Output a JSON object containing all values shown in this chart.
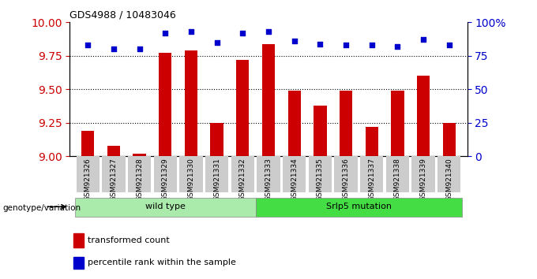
{
  "title": "GDS4988 / 10483046",
  "samples": [
    "GSM921326",
    "GSM921327",
    "GSM921328",
    "GSM921329",
    "GSM921330",
    "GSM921331",
    "GSM921332",
    "GSM921333",
    "GSM921334",
    "GSM921335",
    "GSM921336",
    "GSM921337",
    "GSM921338",
    "GSM921339",
    "GSM921340"
  ],
  "transformed_count": [
    9.19,
    9.08,
    9.02,
    9.77,
    9.79,
    9.25,
    9.72,
    9.84,
    9.49,
    9.38,
    9.49,
    9.22,
    9.49,
    9.6,
    9.25
  ],
  "percentile_rank": [
    83,
    80,
    80,
    92,
    93,
    85,
    92,
    93,
    86,
    84,
    83,
    83,
    82,
    87,
    83
  ],
  "bar_color": "#cc0000",
  "dot_color": "#0000cc",
  "ylim_left": [
    9.0,
    10.0
  ],
  "ylim_right": [
    0,
    100
  ],
  "yticks_left": [
    9.0,
    9.25,
    9.5,
    9.75,
    10.0
  ],
  "yticks_right": [
    0,
    25,
    50,
    75,
    100
  ],
  "grid_lines": [
    9.25,
    9.5,
    9.75
  ],
  "wild_type_count": 7,
  "mutation_count": 8,
  "wild_type_label": "wild type",
  "mutation_label": "Srlp5 mutation",
  "genotype_label": "genotype/variation",
  "legend_bar_label": "transformed count",
  "legend_dot_label": "percentile rank within the sample",
  "wild_type_color": "#aaeaaa",
  "mutation_color": "#44dd44",
  "xticklabel_bg": "#cccccc",
  "bar_width": 0.5
}
